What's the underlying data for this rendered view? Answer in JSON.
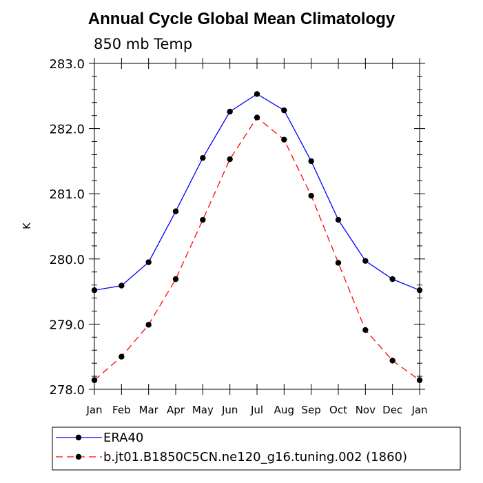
{
  "chart_data": {
    "type": "line",
    "title": "Annual Cycle Global Mean Climatology",
    "subtitle": "850 mb Temp",
    "xlabel": "",
    "ylabel": "K",
    "categories": [
      "Jan",
      "Feb",
      "Mar",
      "Apr",
      "May",
      "Jun",
      "Jul",
      "Aug",
      "Sep",
      "Oct",
      "Nov",
      "Dec",
      "Jan"
    ],
    "ylim": [
      278.0,
      283.0
    ],
    "yticks": [
      "278.0",
      "279.0",
      "280.0",
      "281.0",
      "282.0",
      "283.0"
    ],
    "grid": false,
    "legend": "bottom",
    "series": [
      {
        "name": "ERA40",
        "color": "#0000ff",
        "dash": "solid",
        "marker": "filled-circle",
        "values": [
          279.52,
          279.59,
          279.95,
          280.73,
          281.55,
          282.26,
          282.53,
          282.28,
          281.5,
          280.6,
          279.97,
          279.69,
          279.52
        ]
      },
      {
        "name": "b.jt01.B1850C5CN.ne120_g16.tuning.002 (1860)",
        "color": "#ff0000",
        "dash": "dashed",
        "marker": "filled-circle",
        "values": [
          278.14,
          278.5,
          278.99,
          279.69,
          280.6,
          281.53,
          282.17,
          281.83,
          280.97,
          279.94,
          278.91,
          278.44,
          278.14
        ]
      }
    ]
  }
}
